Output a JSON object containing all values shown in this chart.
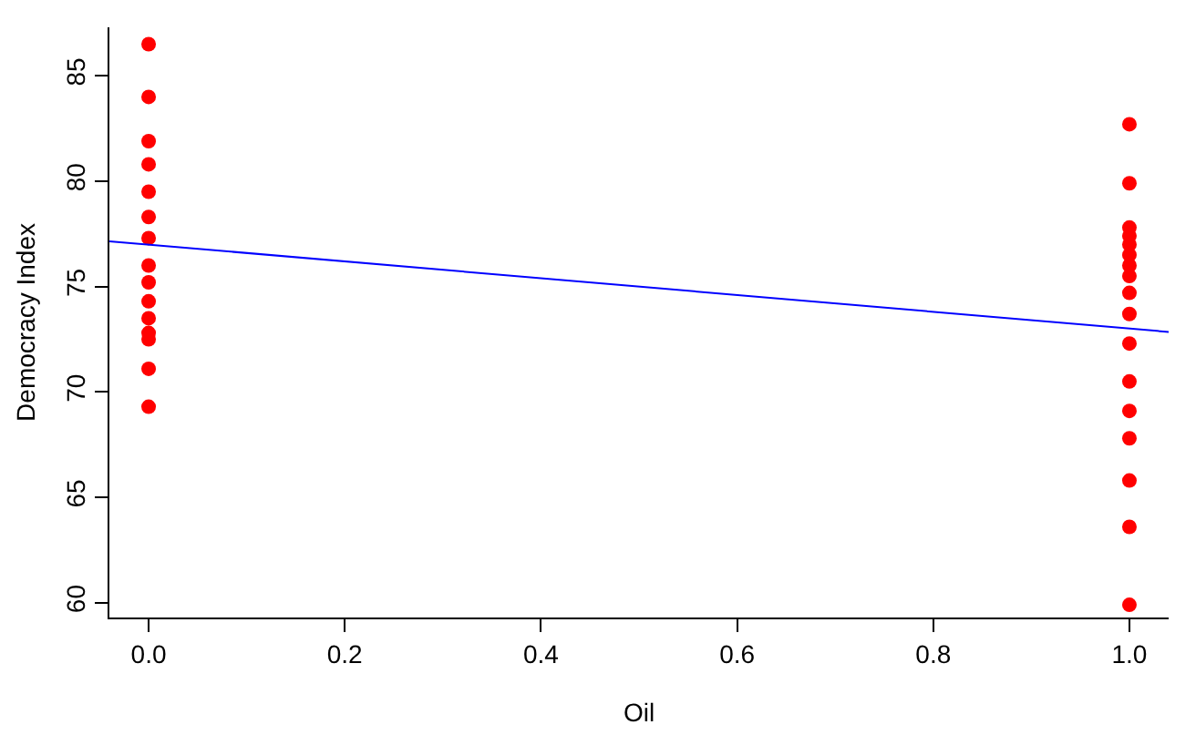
{
  "chart_data": {
    "type": "scatter",
    "xlabel": "Oil",
    "ylabel": "Democracy Index",
    "xlim": [
      -0.04,
      1.04
    ],
    "ylim": [
      59.3,
      87.3
    ],
    "xticks": [
      {
        "value": 0,
        "label": "0.0"
      },
      {
        "value": 0.2,
        "label": "0.2"
      },
      {
        "value": 0.4,
        "label": "0.4"
      },
      {
        "value": 0.6,
        "label": "0.6"
      },
      {
        "value": 0.8,
        "label": "0.8"
      },
      {
        "value": 1,
        "label": "1.0"
      }
    ],
    "yticks": [
      60,
      65,
      70,
      75,
      80,
      85
    ],
    "grid": false,
    "marker": "circle",
    "series": [
      {
        "color": "#ff0000",
        "x": [
          0,
          0,
          0,
          0,
          0,
          0,
          0,
          0,
          0,
          0,
          0,
          0,
          0,
          0,
          0,
          1,
          1,
          1,
          1,
          1,
          1,
          1,
          1,
          1,
          1,
          1,
          1,
          1,
          1,
          1,
          1,
          1
        ],
        "values": [
          86.5,
          84.0,
          81.9,
          80.8,
          79.5,
          78.3,
          77.3,
          76.0,
          75.2,
          74.3,
          73.5,
          72.8,
          72.5,
          71.1,
          69.3,
          82.7,
          79.9,
          77.8,
          77.4,
          77.0,
          76.5,
          76.0,
          75.5,
          74.7,
          73.7,
          72.3,
          70.5,
          69.1,
          67.8,
          65.8,
          63.6,
          59.9
        ]
      },
      {
        "type": "line",
        "color": "#0000ff",
        "marker": "none",
        "line_style": "solid",
        "x": [
          -0.04,
          1.04
        ],
        "values": [
          77.15,
          72.85
        ]
      }
    ]
  }
}
